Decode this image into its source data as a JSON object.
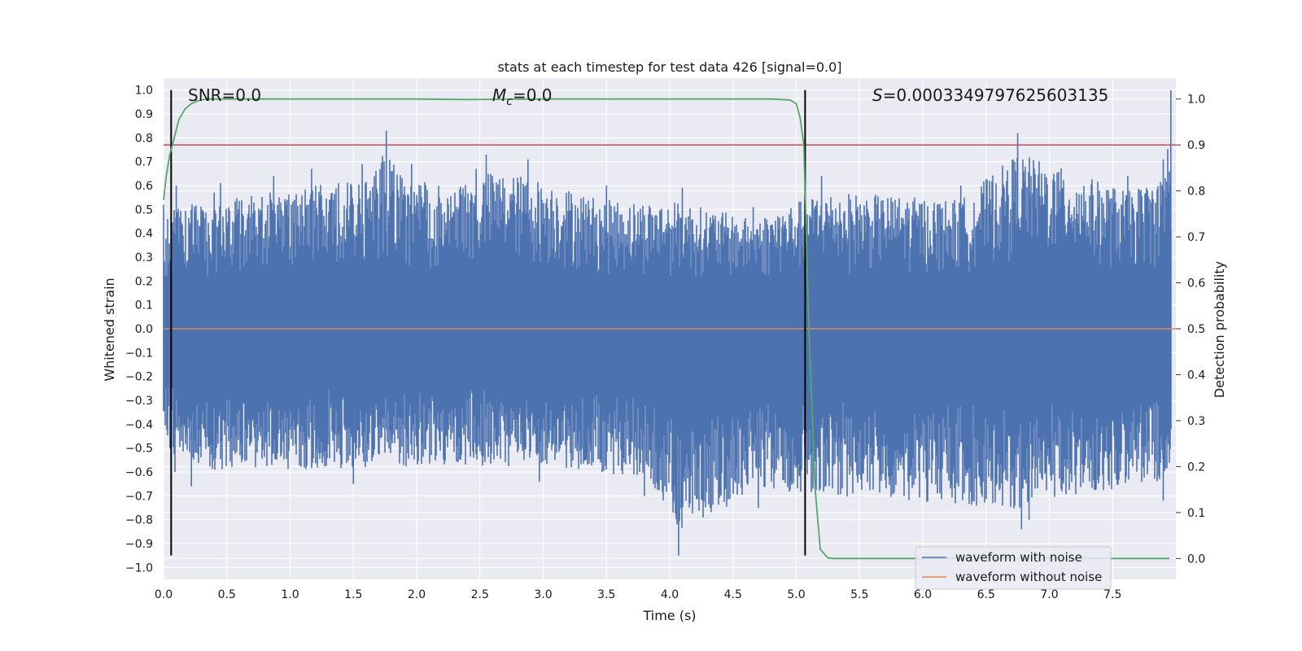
{
  "chart_data": {
    "type": "line",
    "title": "stats at each timestep for test data 426 [signal=0.0]",
    "xlabel": "Time (s)",
    "ylabel": "Whitened strain",
    "y2label": "Detection probability",
    "xlim": [
      0.0,
      8.0
    ],
    "ylim": [
      -1.05,
      1.05
    ],
    "y2lim": [
      -0.0455,
      1.0455
    ],
    "xticks": [
      "0.0",
      "0.5",
      "1.0",
      "1.5",
      "2.0",
      "2.5",
      "3.0",
      "3.5",
      "4.0",
      "4.5",
      "5.0",
      "5.5",
      "6.0",
      "6.5",
      "7.0",
      "7.5"
    ],
    "yticks": [
      "1.0",
      "0.9",
      "0.8",
      "0.7",
      "0.6",
      "0.5",
      "0.4",
      "0.3",
      "0.2",
      "0.1",
      "0.0",
      "−0.1",
      "−0.2",
      "−0.3",
      "−0.4",
      "−0.5",
      "−0.6",
      "−0.7",
      "−0.8",
      "−0.9",
      "−1.0"
    ],
    "y2ticks": [
      "1.0",
      "0.9",
      "0.8",
      "0.7",
      "0.6",
      "0.5",
      "0.4",
      "0.3",
      "0.2",
      "0.1",
      "0.0"
    ],
    "grid": true,
    "legend_position": "lower-right",
    "annotations": {
      "snr": "SNR=0.0",
      "mc_symbol": "M",
      "mc_sub": "c",
      "mc_rest": "=0.0",
      "s_symbol": "S",
      "s_rest": "=0.0003349797625603135"
    },
    "series": [
      {
        "name": "waveform with noise",
        "color": "#4c72b0",
        "axis": "left",
        "sample_rate": 2048,
        "envelope_points": [
          {
            "t": 0.0,
            "y": 0.52
          },
          {
            "t": 0.1,
            "y": 0.6
          },
          {
            "t": 0.4,
            "y": 0.57
          },
          {
            "t": 0.45,
            "y": 0.61
          },
          {
            "t": 0.87,
            "y": 0.64
          },
          {
            "t": 1.17,
            "y": 0.67
          },
          {
            "t": 1.57,
            "y": 0.69
          },
          {
            "t": 1.76,
            "y": 0.83
          },
          {
            "t": 1.96,
            "y": 0.69
          },
          {
            "t": 2.47,
            "y": 0.67
          },
          {
            "t": 2.55,
            "y": 0.73
          },
          {
            "t": 2.88,
            "y": 0.71
          },
          {
            "t": 3.5,
            "y": 0.6
          },
          {
            "t": 4.1,
            "y": 0.59
          },
          {
            "t": 4.66,
            "y": 0.51
          },
          {
            "t": 5.2,
            "y": 0.64
          },
          {
            "t": 6.3,
            "y": 0.6
          },
          {
            "t": 6.75,
            "y": 0.82
          },
          {
            "t": 7.62,
            "y": 0.64
          },
          {
            "t": 7.9,
            "y": 0.71
          },
          {
            "t": 7.96,
            "y": 1.0
          }
        ],
        "negative_envelope_points": [
          {
            "t": 0.05,
            "y": -0.5
          },
          {
            "t": 0.09,
            "y": -0.6
          },
          {
            "t": 0.22,
            "y": -0.66
          },
          {
            "t": 1.5,
            "y": -0.65
          },
          {
            "t": 2.97,
            "y": -0.64
          },
          {
            "t": 3.8,
            "y": -0.7
          },
          {
            "t": 4.07,
            "y": -0.95
          },
          {
            "t": 4.7,
            "y": -0.75
          },
          {
            "t": 6.78,
            "y": -0.84
          },
          {
            "t": 6.84,
            "y": -0.8
          },
          {
            "t": 7.9,
            "y": -0.72
          }
        ]
      },
      {
        "name": "waveform without noise",
        "color": "#dd8452",
        "axis": "left",
        "x": [
          0.0,
          8.0
        ],
        "y": [
          0.0,
          0.0
        ]
      },
      {
        "name": "",
        "color": "#55a868",
        "axis": "right",
        "x": [
          0.0,
          0.02,
          0.05,
          0.08,
          0.12,
          0.17,
          0.22,
          0.28,
          0.35,
          0.5,
          1.0,
          2.0,
          2.4,
          3.0,
          4.0,
          4.8,
          4.95,
          5.0,
          5.03,
          5.06,
          5.1,
          5.15,
          5.19,
          5.25,
          5.3,
          6.0,
          7.0,
          7.95
        ],
        "y": [
          0.78,
          0.83,
          0.88,
          0.91,
          0.955,
          0.978,
          0.99,
          0.997,
          1.0,
          1.0,
          1.0,
          1.0,
          0.999,
          1.0,
          1.0,
          1.0,
          0.998,
          0.99,
          0.96,
          0.9,
          0.5,
          0.15,
          0.02,
          0.001,
          0.0,
          0.0,
          0.0,
          0.0
        ]
      }
    ],
    "threshold_line": {
      "axis": "right",
      "value": 0.9,
      "color": "#c44e52"
    },
    "vertical_markers": [
      {
        "x": 0.06,
        "y_from": -0.95,
        "y_to": 1.0,
        "color": "#000000"
      },
      {
        "x": 5.07,
        "y_from": -0.95,
        "y_to": 1.0,
        "color": "#000000"
      }
    ],
    "background_color": "#eaeaf2",
    "grid_color": "#ffffff"
  }
}
